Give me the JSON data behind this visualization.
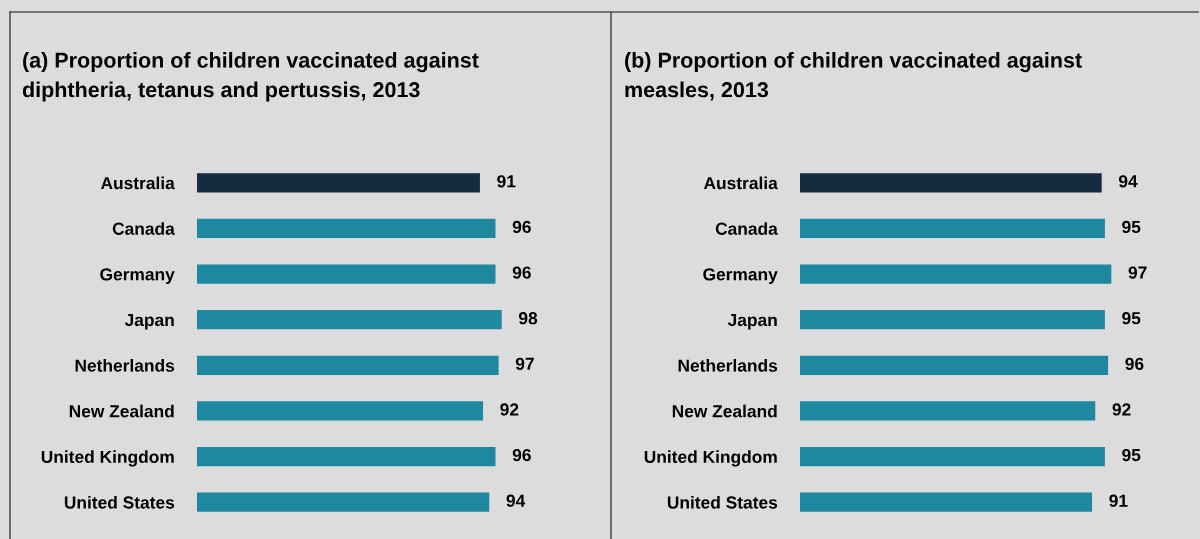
{
  "chart_data": [
    {
      "type": "bar",
      "orientation": "horizontal",
      "title": "(a) Proportion of children vaccinated against\ndiphtheria, tetanus and pertussis, 2013",
      "categories": [
        "Australia",
        "Canada",
        "Germany",
        "Japan",
        "Netherlands",
        "New Zealand",
        "United Kingdom",
        "United States"
      ],
      "values": [
        91,
        96,
        96,
        98,
        97,
        92,
        96,
        94
      ],
      "colors": [
        "#172b40",
        "#1e88a0",
        "#1e88a0",
        "#1e88a0",
        "#1e88a0",
        "#1e88a0",
        "#1e88a0",
        "#1e88a0"
      ],
      "data_labels": true,
      "grid": false,
      "legend": false
    },
    {
      "type": "bar",
      "orientation": "horizontal",
      "title": "(b) Proportion of children vaccinated against\nmeasles, 2013",
      "categories": [
        "Australia",
        "Canada",
        "Germany",
        "Japan",
        "Netherlands",
        "New Zealand",
        "United Kingdom",
        "United States"
      ],
      "values": [
        94,
        95,
        97,
        95,
        96,
        92,
        95,
        91
      ],
      "colors": [
        "#172b40",
        "#1e88a0",
        "#1e88a0",
        "#1e88a0",
        "#1e88a0",
        "#1e88a0",
        "#1e88a0",
        "#1e88a0"
      ],
      "data_labels": true,
      "grid": false,
      "legend": false
    }
  ]
}
